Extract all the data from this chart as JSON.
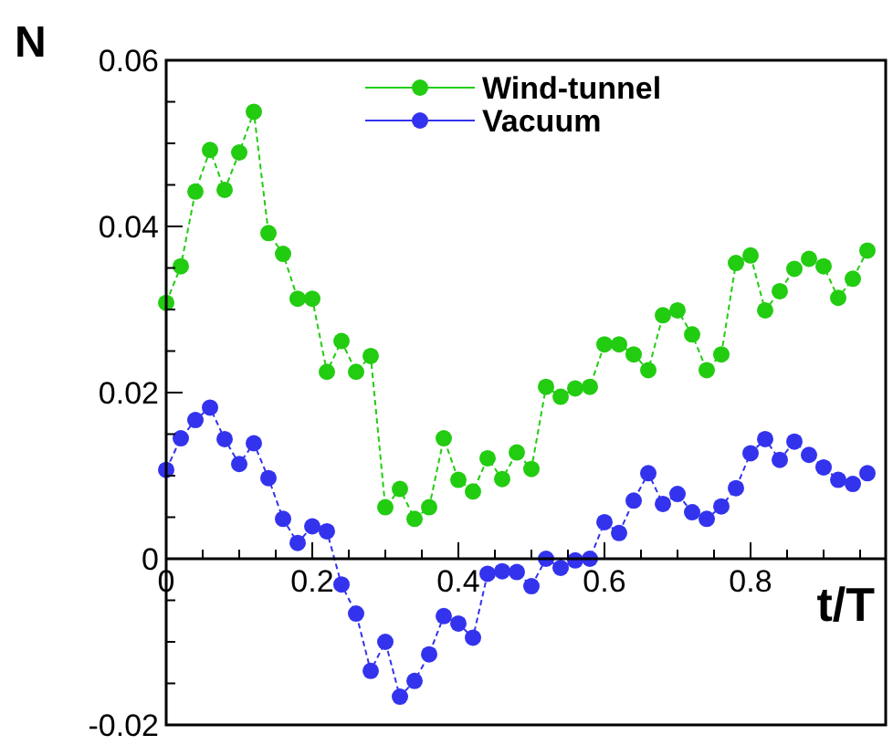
{
  "chart_data": {
    "type": "line",
    "xlabel": "t/T",
    "ylabel": "N",
    "x": [
      0,
      0.02,
      0.04,
      0.06,
      0.08,
      0.1,
      0.12,
      0.14,
      0.16,
      0.18,
      0.2,
      0.22,
      0.24,
      0.26,
      0.28,
      0.3,
      0.32,
      0.34,
      0.36,
      0.38,
      0.4,
      0.42,
      0.44,
      0.46,
      0.48,
      0.5,
      0.52,
      0.54,
      0.56,
      0.58,
      0.6,
      0.62,
      0.64,
      0.66,
      0.68,
      0.7,
      0.72,
      0.74,
      0.76,
      0.78,
      0.8,
      0.82,
      0.84,
      0.86,
      0.88,
      0.9,
      0.92,
      0.94,
      0.96
    ],
    "series": [
      {
        "name": "Wind-tunnel",
        "color": "#22cc11",
        "values": [
          0.0308,
          0.0352,
          0.0442,
          0.0492,
          0.0444,
          0.0489,
          0.0538,
          0.0392,
          0.0367,
          0.0313,
          0.0313,
          0.0225,
          0.0262,
          0.0225,
          0.0244,
          0.0062,
          0.0084,
          0.0048,
          0.0062,
          0.0145,
          0.0095,
          0.0081,
          0.0121,
          0.0096,
          0.0128,
          0.0108,
          0.0207,
          0.0195,
          0.0205,
          0.0207,
          0.0258,
          0.0258,
          0.0246,
          0.0227,
          0.0293,
          0.0299,
          0.027,
          0.0227,
          0.0246,
          0.0356,
          0.0365,
          0.0299,
          0.0322,
          0.0349,
          0.0361,
          0.0352,
          0.0314,
          0.0337,
          0.0371
        ]
      },
      {
        "name": "Vacuum",
        "color": "#3333ee",
        "values": [
          0.0107,
          0.0145,
          0.0167,
          0.0182,
          0.0144,
          0.0114,
          0.0139,
          0.0097,
          0.0048,
          0.0019,
          0.0039,
          0.0033,
          -0.0031,
          -0.0066,
          -0.0135,
          -0.01,
          -0.0166,
          -0.0147,
          -0.0115,
          -0.0069,
          -0.0078,
          -0.0095,
          -0.0018,
          -0.0015,
          -0.0016,
          -0.0033,
          0,
          -0.0011,
          -0.0002,
          0,
          0.0044,
          0.0031,
          0.007,
          0.0103,
          0.0066,
          0.0078,
          0.0056,
          0.0048,
          0.0063,
          0.0085,
          0.0127,
          0.0144,
          0.0119,
          0.0141,
          0.0125,
          0.011,
          0.0095,
          0.009,
          0.0103
        ]
      }
    ],
    "xlim": [
      0,
      0.985
    ],
    "ylim": [
      -0.02,
      0.06
    ],
    "xticks": [
      0,
      {
        "value": 0.05,
        "label": null
      },
      {
        "value": 0.1,
        "label": null
      },
      {
        "value": 0.15,
        "label": null
      },
      0.2,
      {
        "value": 0.25,
        "label": null
      },
      {
        "value": 0.3,
        "label": null
      },
      {
        "value": 0.35,
        "label": null
      },
      0.4,
      {
        "value": 0.45,
        "label": null
      },
      {
        "value": 0.5,
        "label": null
      },
      {
        "value": 0.55,
        "label": null
      },
      0.6,
      {
        "value": 0.65,
        "label": null
      },
      {
        "value": 0.7,
        "label": null
      },
      {
        "value": 0.75,
        "label": null
      },
      0.8,
      {
        "value": 0.85,
        "label": null
      },
      {
        "value": 0.9,
        "label": null
      },
      {
        "value": 0.95,
        "label": null
      }
    ],
    "yticks": [
      -0.02,
      {
        "value": -0.015,
        "label": null
      },
      {
        "value": -0.01,
        "label": null
      },
      {
        "value": -0.005,
        "label": null
      },
      0,
      {
        "value": 0.005,
        "label": null
      },
      {
        "value": 0.01,
        "label": null
      },
      {
        "value": 0.015,
        "label": null
      },
      0.02,
      {
        "value": 0.025,
        "label": null
      },
      {
        "value": 0.03,
        "label": null
      },
      {
        "value": 0.035,
        "label": null
      },
      0.04,
      {
        "value": 0.045,
        "label": null
      },
      {
        "value": 0.05,
        "label": null
      },
      {
        "value": 0.055,
        "label": null
      },
      0.06
    ],
    "marker": "circle",
    "line_style": "dashed",
    "legend": "top right",
    "grid": false
  }
}
